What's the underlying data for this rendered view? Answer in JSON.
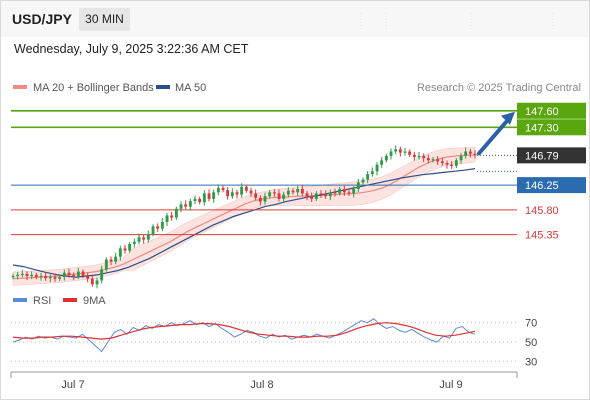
{
  "header": {
    "symbol": "USD/JPY",
    "timeframe": "30 MIN"
  },
  "datetime": "Wednesday, July 9, 2025 3:22:36 AM CET",
  "legend": {
    "ma20": {
      "label": "MA 20 + Bollinger Bands",
      "color": "#f08a80"
    },
    "ma50": {
      "label": "MA 50",
      "color": "#2a4f8a"
    }
  },
  "credit": "Research © 2025 Trading Central",
  "colors": {
    "candle_up": "#2f9a4a",
    "candle_down": "#d93a3a",
    "bollinger_fill": "#fde3e0",
    "target": "#5aa60f",
    "pivot": "#2b6cb0",
    "support": "#d93a3a",
    "rsi": "#5b8bd9",
    "rsi_ma": "#e03030"
  },
  "chart_data": [
    {
      "type": "candlestick",
      "title": "USD/JPY",
      "x_labels": [
        "Jul 7",
        "Jul 8",
        "Jul 9"
      ],
      "last_price": 146.79,
      "levels": [
        {
          "name": "target",
          "value": 147.6,
          "label": "147.60",
          "color": "#5aa60f"
        },
        {
          "name": "target",
          "value": 147.3,
          "label": "147.30",
          "color": "#5aa60f"
        },
        {
          "name": "last",
          "value": 146.79,
          "label": "146.79",
          "color": "#333333"
        },
        {
          "name": "pivot",
          "value": 146.25,
          "label": "146.25",
          "color": "#2b6cb0"
        },
        {
          "name": "support",
          "value": 145.8,
          "label": "145.80",
          "color": "#d93a3a"
        },
        {
          "name": "support",
          "value": 145.35,
          "label": "145.35",
          "color": "#d93a3a"
        }
      ],
      "ylim": [
        144.4,
        147.85
      ],
      "close_series": [
        144.6,
        144.62,
        144.64,
        144.6,
        144.62,
        144.58,
        144.6,
        144.56,
        144.58,
        144.55,
        144.58,
        144.66,
        144.62,
        144.6,
        144.68,
        144.6,
        144.55,
        144.45,
        144.52,
        144.72,
        144.9,
        144.86,
        144.95,
        145.1,
        145.06,
        145.18,
        145.22,
        145.3,
        145.26,
        145.36,
        145.5,
        145.46,
        145.58,
        145.7,
        145.66,
        145.82,
        145.9,
        145.86,
        145.96,
        146.0,
        145.94,
        146.1,
        146.0,
        146.12,
        146.2,
        146.16,
        146.05,
        146.12,
        146.08,
        146.22,
        146.15,
        146.1,
        146.02,
        145.95,
        146.05,
        146.12,
        146.1,
        146.0,
        146.08,
        146.15,
        146.12,
        146.18,
        146.1,
        146.05,
        146.0,
        146.1,
        146.08,
        146.05,
        146.12,
        146.1,
        146.18,
        146.12,
        146.1,
        146.18,
        146.3,
        146.35,
        146.45,
        146.5,
        146.62,
        146.7,
        146.78,
        146.86,
        146.9,
        146.84,
        146.86,
        146.8,
        146.76,
        146.78,
        146.74,
        146.7,
        146.72,
        146.68,
        146.65,
        146.62,
        146.6,
        146.7,
        146.78,
        146.86,
        146.82,
        146.79
      ],
      "ma20_series": [
        144.55,
        144.56,
        144.57,
        144.58,
        144.59,
        144.6,
        144.62,
        144.64,
        144.66,
        144.68,
        144.72,
        144.76,
        144.82,
        144.9,
        144.98,
        145.06,
        145.14,
        145.22,
        145.32,
        145.42,
        145.5,
        145.58,
        145.66,
        145.74,
        145.82,
        145.9,
        145.96,
        146.0,
        146.02,
        146.03,
        146.04,
        146.05,
        146.05,
        146.06,
        146.07,
        146.08,
        146.09,
        146.1,
        146.12,
        146.15,
        146.2,
        146.28,
        146.38,
        146.48,
        146.58,
        146.66,
        146.72,
        146.76,
        146.78,
        146.79,
        146.8
      ],
      "ma50_series": [
        144.8,
        144.77,
        144.72,
        144.67,
        144.63,
        144.6,
        144.58,
        144.6,
        144.62,
        144.66,
        144.7,
        144.76,
        144.84,
        144.92,
        145.02,
        145.12,
        145.22,
        145.32,
        145.42,
        145.52,
        145.6,
        145.68,
        145.74,
        145.8,
        145.86,
        145.9,
        145.95,
        145.99,
        146.03,
        146.06,
        146.1,
        146.14,
        146.18,
        146.22,
        146.26,
        146.3,
        146.34,
        146.38,
        146.41,
        146.44,
        146.46,
        146.48,
        146.5,
        146.52,
        146.55
      ],
      "forecast_arrow": {
        "from": 146.79,
        "to": 147.6
      }
    },
    {
      "type": "line",
      "title": "RSI",
      "series": [
        {
          "name": "RSI",
          "color": "#5b8bd9",
          "values": [
            50,
            52,
            55,
            53,
            56,
            54,
            55,
            53,
            56,
            55,
            54,
            58,
            52,
            46,
            40,
            50,
            60,
            63,
            58,
            65,
            62,
            67,
            64,
            68,
            66,
            70,
            67,
            69,
            72,
            68,
            70,
            66,
            69,
            64,
            60,
            55,
            58,
            62,
            60,
            56,
            54,
            58,
            55,
            57,
            53,
            55,
            57,
            55,
            58,
            56,
            54,
            57,
            60,
            64,
            68,
            72,
            70,
            74,
            68,
            64,
            66,
            62,
            60,
            63,
            59,
            55,
            52,
            50,
            56,
            54,
            64,
            66,
            60,
            58
          ]
        },
        {
          "name": "9MA",
          "color": "#e03030",
          "values": [
            55,
            54,
            54,
            55,
            55,
            56,
            56,
            55,
            54,
            53,
            54,
            57,
            60,
            63,
            65,
            66,
            67,
            68,
            68,
            69,
            69,
            68,
            66,
            63,
            60,
            58,
            57,
            56,
            56,
            55,
            55,
            56,
            56,
            57,
            60,
            64,
            67,
            69,
            70,
            69,
            67,
            64,
            60,
            57,
            56,
            57,
            59,
            61
          ]
        }
      ],
      "ylim": [
        22,
        80
      ],
      "y_ticks": [
        70,
        50,
        30
      ]
    }
  ]
}
